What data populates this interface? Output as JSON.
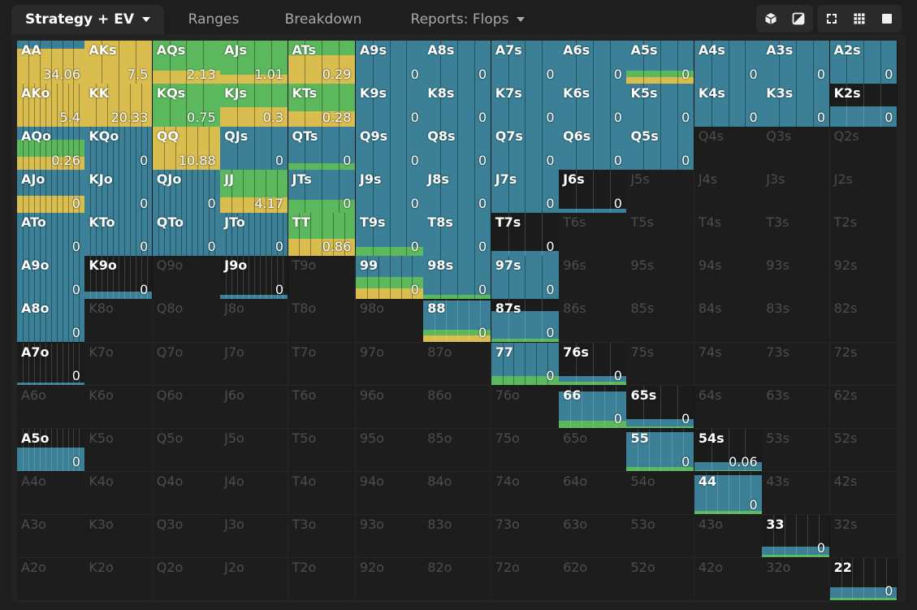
{
  "tabs": [
    {
      "label": "Strategy + EV",
      "dropdown": true,
      "active": true
    },
    {
      "label": "Ranges",
      "dropdown": false,
      "active": false
    },
    {
      "label": "Breakdown",
      "dropdown": false,
      "active": false
    },
    {
      "label": "Reports: Flops",
      "dropdown": true,
      "active": false
    }
  ],
  "toolbar_icons": [
    "cube-icon",
    "contrast-icon",
    "compact-view-icon",
    "grid-view-icon",
    "full-view-icon"
  ],
  "colors": {
    "yellow": "#d9bd4f",
    "green": "#5cb85c",
    "blue": "#3b8096",
    "empty": "#1d1d1d",
    "zero": "#1b1b1b"
  },
  "grid": {
    "rows": [
      [
        "AA",
        "AKs",
        "AQs",
        "AJs",
        "ATs",
        "A9s",
        "A8s",
        "A7s",
        "A6s",
        "A5s",
        "A4s",
        "A3s",
        "A2s"
      ],
      [
        "AKo",
        "KK",
        "KQs",
        "KJs",
        "KTs",
        "K9s",
        "K8s",
        "K7s",
        "K6s",
        "K5s",
        "K4s",
        "K3s",
        "K2s"
      ],
      [
        "AQo",
        "KQo",
        "QQ",
        "QJs",
        "QTs",
        "Q9s",
        "Q8s",
        "Q7s",
        "Q6s",
        "Q5s",
        "Q4s",
        "Q3s",
        "Q2s"
      ],
      [
        "AJo",
        "KJo",
        "QJo",
        "JJ",
        "JTs",
        "J9s",
        "J8s",
        "J7s",
        "J6s",
        "J5s",
        "J4s",
        "J3s",
        "J2s"
      ],
      [
        "ATo",
        "KTo",
        "QTo",
        "JTo",
        "TT",
        "T9s",
        "T8s",
        "T7s",
        "T6s",
        "T5s",
        "T4s",
        "T3s",
        "T2s"
      ],
      [
        "A9o",
        "K9o",
        "Q9o",
        "J9o",
        "T9o",
        "99",
        "98s",
        "97s",
        "96s",
        "95s",
        "94s",
        "93s",
        "92s"
      ],
      [
        "A8o",
        "K8o",
        "Q8o",
        "J8o",
        "T8o",
        "98o",
        "88",
        "87s",
        "86s",
        "85s",
        "84s",
        "83s",
        "82s"
      ],
      [
        "A7o",
        "K7o",
        "Q7o",
        "J7o",
        "T7o",
        "97o",
        "87o",
        "77",
        "76s",
        "75s",
        "74s",
        "73s",
        "72s"
      ],
      [
        "A6o",
        "K6o",
        "Q6o",
        "J6o",
        "T6o",
        "96o",
        "86o",
        "76o",
        "66",
        "65s",
        "64s",
        "63s",
        "62s"
      ],
      [
        "A5o",
        "K5o",
        "Q5o",
        "J5o",
        "T5o",
        "95o",
        "85o",
        "75o",
        "65o",
        "55",
        "54s",
        "53s",
        "52s"
      ],
      [
        "A4o",
        "K4o",
        "Q4o",
        "J4o",
        "T4o",
        "94o",
        "84o",
        "74o",
        "64o",
        "54o",
        "44",
        "43s",
        "42s"
      ],
      [
        "A3o",
        "K3o",
        "Q3o",
        "J3o",
        "T3o",
        "93o",
        "83o",
        "73o",
        "63o",
        "53o",
        "43o",
        "33",
        "32s"
      ],
      [
        "A2o",
        "K2o",
        "Q2o",
        "J2o",
        "T2o",
        "92o",
        "82o",
        "72o",
        "62o",
        "52o",
        "42o",
        "32o",
        "22"
      ]
    ],
    "active": {
      "AA": {
        "ev": "34.06",
        "freq": 1.0,
        "mix": [
          0.8,
          0.0,
          0.2
        ]
      },
      "AKs": {
        "ev": "7.5",
        "freq": 1.0,
        "mix": [
          1.0,
          0.0,
          0.0
        ]
      },
      "AQs": {
        "ev": "2.13",
        "freq": 1.0,
        "mix": [
          0.3,
          0.7,
          0.0
        ]
      },
      "AJs": {
        "ev": "1.01",
        "freq": 1.0,
        "mix": [
          0.2,
          0.8,
          0.0
        ]
      },
      "ATs": {
        "ev": "0.29",
        "freq": 1.0,
        "mix": [
          0.65,
          0.35,
          0.0
        ]
      },
      "A9s": {
        "ev": "0",
        "freq": 1.0,
        "mix": [
          0.0,
          0.0,
          1.0
        ]
      },
      "A8s": {
        "ev": "0",
        "freq": 1.0,
        "mix": [
          0.0,
          0.0,
          1.0
        ]
      },
      "A7s": {
        "ev": "0",
        "freq": 1.0,
        "mix": [
          0.0,
          0.0,
          1.0
        ]
      },
      "A6s": {
        "ev": "0",
        "freq": 1.0,
        "mix": [
          0.0,
          0.0,
          1.0
        ]
      },
      "A5s": {
        "ev": "0",
        "freq": 1.0,
        "mix": [
          0.15,
          0.15,
          0.7
        ]
      },
      "A4s": {
        "ev": "0",
        "freq": 1.0,
        "mix": [
          0.0,
          0.0,
          1.0
        ]
      },
      "A3s": {
        "ev": "0",
        "freq": 1.0,
        "mix": [
          0.0,
          0.0,
          1.0
        ]
      },
      "A2s": {
        "ev": "0",
        "freq": 1.0,
        "mix": [
          0.0,
          0.0,
          1.0
        ]
      },
      "AKo": {
        "ev": "5.4",
        "freq": 1.0,
        "mix": [
          1.0,
          0.0,
          0.0
        ]
      },
      "KK": {
        "ev": "20.33",
        "freq": 1.0,
        "mix": [
          1.0,
          0.0,
          0.0
        ]
      },
      "KQs": {
        "ev": "0.75",
        "freq": 1.0,
        "mix": [
          0.0,
          1.0,
          0.0
        ]
      },
      "KJs": {
        "ev": "0.3",
        "freq": 1.0,
        "mix": [
          0.45,
          0.55,
          0.0
        ]
      },
      "KTs": {
        "ev": "0.28",
        "freq": 1.0,
        "mix": [
          0.35,
          0.65,
          0.0
        ]
      },
      "K9s": {
        "ev": "0",
        "freq": 1.0,
        "mix": [
          0.0,
          0.0,
          1.0
        ]
      },
      "K8s": {
        "ev": "0",
        "freq": 1.0,
        "mix": [
          0.0,
          0.0,
          1.0
        ]
      },
      "K7s": {
        "ev": "0",
        "freq": 1.0,
        "mix": [
          0.0,
          0.0,
          1.0
        ]
      },
      "K6s": {
        "ev": "0",
        "freq": 1.0,
        "mix": [
          0.0,
          0.0,
          1.0
        ]
      },
      "K5s": {
        "ev": "0",
        "freq": 1.0,
        "mix": [
          0.0,
          0.0,
          1.0
        ]
      },
      "K4s": {
        "ev": "0",
        "freq": 1.0,
        "mix": [
          0.0,
          0.0,
          1.0
        ]
      },
      "K3s": {
        "ev": "0",
        "freq": 1.0,
        "mix": [
          0.0,
          0.0,
          1.0
        ]
      },
      "K2s": {
        "ev": "0",
        "freq": 0.45,
        "mix": [
          0.0,
          0.0,
          1.0
        ]
      },
      "AQo": {
        "ev": "0.26",
        "freq": 1.0,
        "mix": [
          0.3,
          0.4,
          0.3
        ]
      },
      "KQo": {
        "ev": "0",
        "freq": 1.0,
        "mix": [
          0.0,
          0.0,
          1.0
        ]
      },
      "QQ": {
        "ev": "10.88",
        "freq": 1.0,
        "mix": [
          1.0,
          0.0,
          0.0
        ]
      },
      "QJs": {
        "ev": "0",
        "freq": 1.0,
        "mix": [
          0.0,
          0.0,
          1.0
        ]
      },
      "QTs": {
        "ev": "0",
        "freq": 1.0,
        "mix": [
          0.0,
          0.15,
          0.85
        ]
      },
      "Q9s": {
        "ev": "0",
        "freq": 1.0,
        "mix": [
          0.0,
          0.0,
          1.0
        ]
      },
      "Q8s": {
        "ev": "0",
        "freq": 1.0,
        "mix": [
          0.0,
          0.0,
          1.0
        ]
      },
      "Q7s": {
        "ev": "0",
        "freq": 1.0,
        "mix": [
          0.0,
          0.0,
          1.0
        ]
      },
      "Q6s": {
        "ev": "0",
        "freq": 1.0,
        "mix": [
          0.0,
          0.0,
          1.0
        ]
      },
      "Q5s": {
        "ev": "0",
        "freq": 1.0,
        "mix": [
          0.0,
          0.0,
          1.0
        ]
      },
      "AJo": {
        "ev": "0",
        "freq": 1.0,
        "mix": [
          0.4,
          0.0,
          0.6
        ]
      },
      "KJo": {
        "ev": "0",
        "freq": 1.0,
        "mix": [
          0.0,
          0.0,
          1.0
        ]
      },
      "QJo": {
        "ev": "0",
        "freq": 1.0,
        "mix": [
          0.0,
          0.0,
          1.0
        ]
      },
      "JJ": {
        "ev": "4.17",
        "freq": 1.0,
        "mix": [
          0.35,
          0.65,
          0.0
        ]
      },
      "JTs": {
        "ev": "0",
        "freq": 1.0,
        "mix": [
          0.0,
          0.3,
          0.7
        ]
      },
      "J9s": {
        "ev": "0",
        "freq": 1.0,
        "mix": [
          0.0,
          0.0,
          1.0
        ]
      },
      "J8s": {
        "ev": "0",
        "freq": 1.0,
        "mix": [
          0.0,
          0.0,
          1.0
        ]
      },
      "J7s": {
        "ev": "0",
        "freq": 1.0,
        "mix": [
          0.0,
          0.0,
          1.0
        ]
      },
      "J6s": {
        "ev": "0",
        "freq": 0.08,
        "mix": [
          0.0,
          0.0,
          1.0
        ]
      },
      "ATo": {
        "ev": "0",
        "freq": 1.0,
        "mix": [
          0.0,
          0.0,
          1.0
        ]
      },
      "KTo": {
        "ev": "0",
        "freq": 1.0,
        "mix": [
          0.0,
          0.0,
          1.0
        ]
      },
      "QTo": {
        "ev": "0",
        "freq": 1.0,
        "mix": [
          0.0,
          0.0,
          1.0
        ]
      },
      "JTo": {
        "ev": "0",
        "freq": 1.0,
        "mix": [
          0.0,
          0.0,
          1.0
        ]
      },
      "TT": {
        "ev": "0.86",
        "freq": 1.0,
        "mix": [
          0.4,
          0.6,
          0.0
        ]
      },
      "T9s": {
        "ev": "0",
        "freq": 1.0,
        "mix": [
          0.0,
          0.2,
          0.8
        ]
      },
      "T8s": {
        "ev": "0",
        "freq": 1.0,
        "mix": [
          0.0,
          0.0,
          1.0
        ]
      },
      "T7s": {
        "ev": "0",
        "freq": 0.1,
        "mix": [
          0.0,
          0.0,
          1.0
        ]
      },
      "A9o": {
        "ev": "0",
        "freq": 1.0,
        "mix": [
          0.0,
          0.0,
          1.0
        ]
      },
      "K9o": {
        "ev": "0",
        "freq": 0.15,
        "mix": [
          0.0,
          0.0,
          1.0
        ]
      },
      "J9o": {
        "ev": "0",
        "freq": 0.08,
        "mix": [
          0.0,
          0.0,
          1.0
        ]
      },
      "99": {
        "ev": "0",
        "freq": 1.0,
        "mix": [
          0.25,
          0.25,
          0.5
        ]
      },
      "98s": {
        "ev": "0",
        "freq": 1.0,
        "mix": [
          0.0,
          0.1,
          0.9
        ]
      },
      "97s": {
        "ev": "0",
        "freq": 1.0,
        "mix": [
          0.0,
          0.0,
          1.0
        ]
      },
      "A8o": {
        "ev": "0",
        "freq": 1.0,
        "mix": [
          0.0,
          0.0,
          1.0
        ]
      },
      "88": {
        "ev": "0",
        "freq": 0.95,
        "mix": [
          0.15,
          0.15,
          0.7
        ]
      },
      "87s": {
        "ev": "0",
        "freq": 0.7,
        "mix": [
          0.0,
          0.1,
          0.9
        ]
      },
      "A7o": {
        "ev": "0",
        "freq": 0.05,
        "mix": [
          0.0,
          0.0,
          1.0
        ]
      },
      "77": {
        "ev": "0",
        "freq": 1.0,
        "mix": [
          0.0,
          0.2,
          0.8
        ]
      },
      "76s": {
        "ev": "0",
        "freq": 0.2,
        "mix": [
          0.0,
          0.4,
          0.6
        ]
      },
      "66": {
        "ev": "0",
        "freq": 0.85,
        "mix": [
          0.0,
          0.2,
          0.8
        ]
      },
      "65s": {
        "ev": "0",
        "freq": 0.2,
        "mix": [
          0.0,
          0.25,
          0.75
        ]
      },
      "A5o": {
        "ev": "0",
        "freq": 0.55,
        "mix": [
          0.0,
          0.0,
          1.0
        ]
      },
      "55": {
        "ev": "0",
        "freq": 0.9,
        "mix": [
          0.0,
          0.1,
          0.9
        ]
      },
      "54s": {
        "ev": "0.06",
        "freq": 0.2,
        "mix": [
          0.0,
          0.15,
          0.85
        ]
      },
      "44": {
        "ev": "0",
        "freq": 0.9,
        "mix": [
          0.0,
          0.1,
          0.9
        ]
      },
      "33": {
        "ev": "0",
        "freq": 0.25,
        "mix": [
          0.0,
          0.25,
          0.75
        ]
      },
      "22": {
        "ev": "0",
        "freq": 0.3,
        "mix": [
          0.0,
          0.2,
          0.8
        ]
      }
    }
  }
}
